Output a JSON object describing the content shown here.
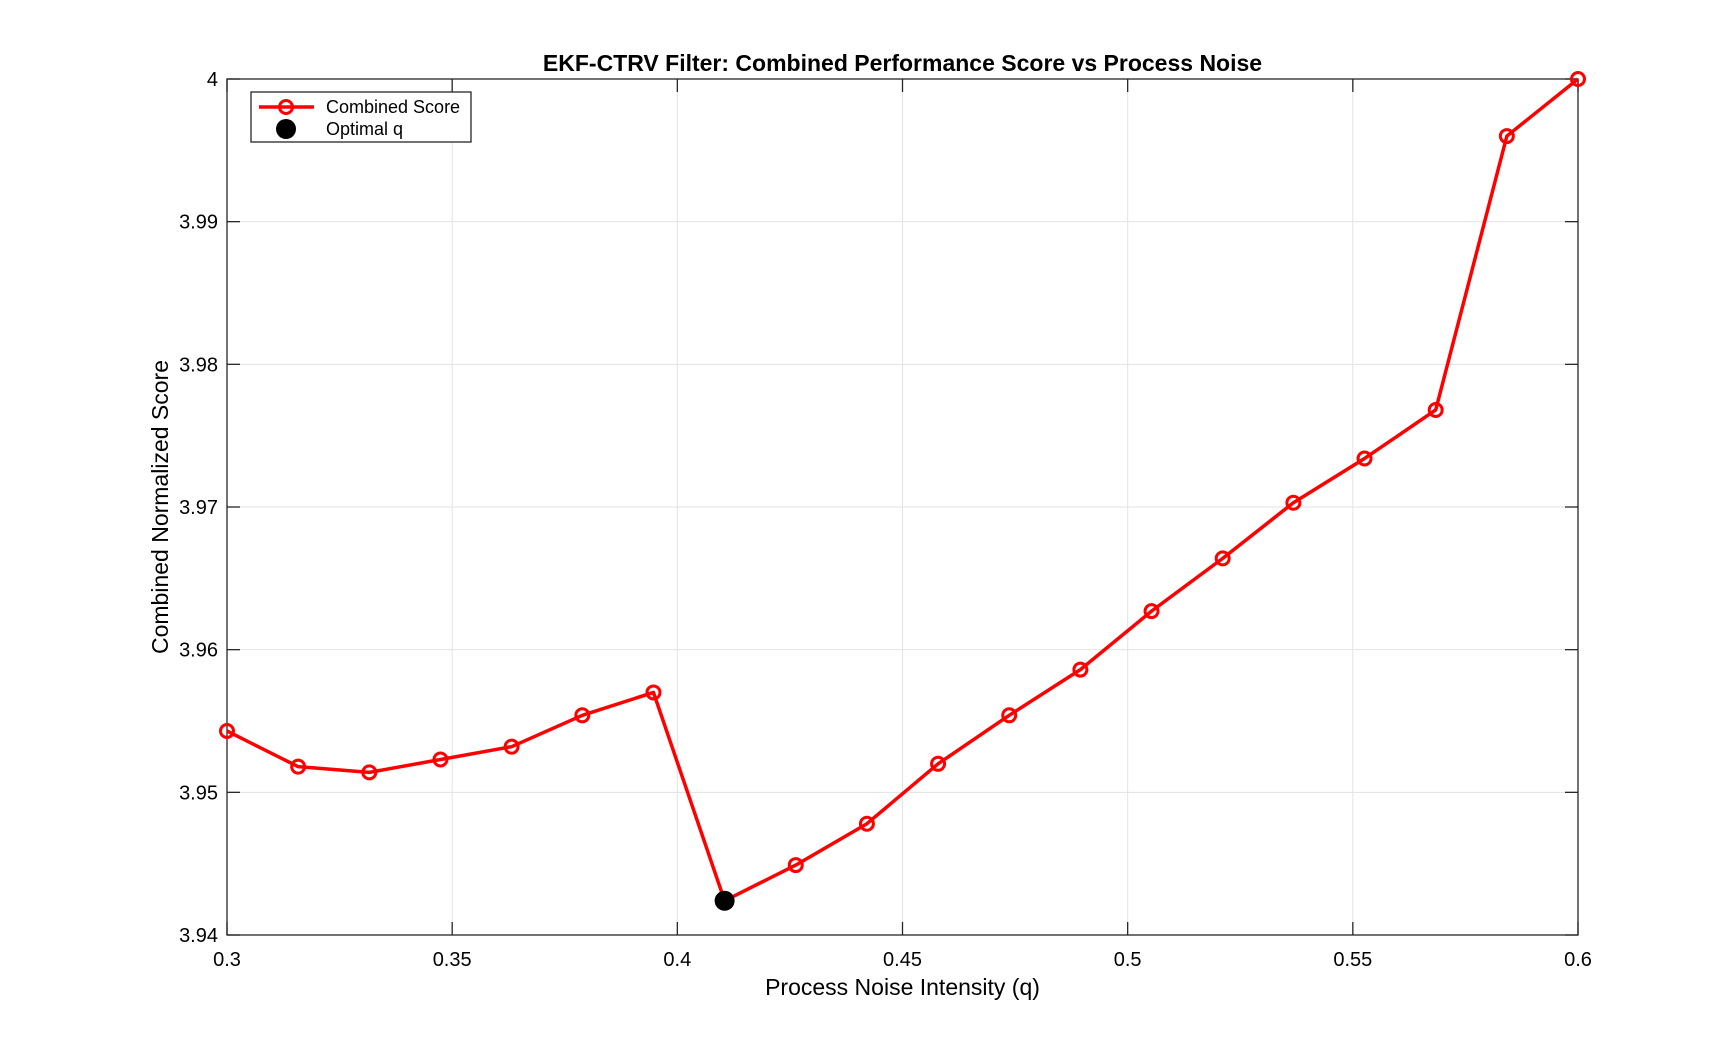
{
  "chart_data": {
    "type": "line",
    "title": "EKF-CTRV Filter: Combined Performance Score vs Process Noise",
    "xlabel": "Process Noise Intensity (q)",
    "ylabel": "Combined Normalized Score",
    "xlim": [
      0.3,
      0.6
    ],
    "ylim": [
      3.94,
      4.0
    ],
    "xticks": [
      "0.3",
      "0.35",
      "0.4",
      "0.45",
      "0.5",
      "0.55",
      "0.6"
    ],
    "yticks": [
      "3.94",
      "3.95",
      "3.96",
      "3.97",
      "3.98",
      "3.99",
      "4"
    ],
    "grid": true,
    "legend_position": "top-left",
    "series": [
      {
        "name": "Combined Score",
        "color": "#ff0000",
        "marker": "open-circle",
        "x": [
          0.3,
          0.3158,
          0.3316,
          0.3474,
          0.3632,
          0.3789,
          0.3947,
          0.4105,
          0.4263,
          0.4421,
          0.4579,
          0.4737,
          0.4895,
          0.5053,
          0.5211,
          0.5368,
          0.5526,
          0.5684,
          0.5842,
          0.6
        ],
        "y": [
          3.9543,
          3.9518,
          3.9514,
          3.9523,
          3.9532,
          3.9554,
          3.957,
          3.9424,
          3.9449,
          3.9478,
          3.952,
          3.9554,
          3.9586,
          3.9627,
          3.9664,
          3.9703,
          3.9734,
          3.9768,
          3.996,
          4.0
        ]
      },
      {
        "name": "Optimal q",
        "color": "#000000",
        "marker": "filled-circle",
        "x": [
          0.4105
        ],
        "y": [
          3.9424
        ]
      }
    ]
  }
}
